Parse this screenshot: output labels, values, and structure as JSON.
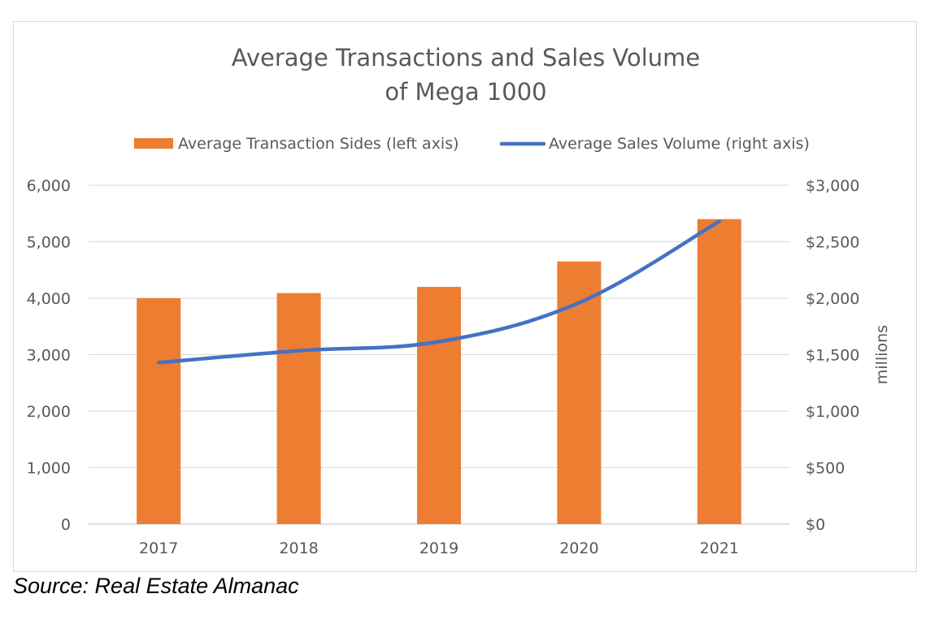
{
  "chart_data": {
    "type": "bar",
    "title": [
      "Average Transactions and Sales Volume",
      "of Mega 1000"
    ],
    "categories": [
      "2017",
      "2018",
      "2019",
      "2020",
      "2021"
    ],
    "series": [
      {
        "name": "Average Transaction Sides (left axis)",
        "type": "bar",
        "axis": "left",
        "color": "#ED7D31",
        "values": [
          4000,
          4090,
          4200,
          4650,
          5400
        ]
      },
      {
        "name": "Average Sales Volume (right axis)",
        "type": "line",
        "axis": "right",
        "color": "#4472C4",
        "values": [
          1430,
          1535,
          1615,
          1960,
          2680
        ]
      }
    ],
    "y_left": {
      "range": [
        0,
        6000
      ],
      "ticks": [
        "0",
        "1,000",
        "2,000",
        "3,000",
        "4,000",
        "5,000",
        "6,000"
      ]
    },
    "y_right": {
      "range": [
        0,
        3000
      ],
      "ticks": [
        "$0",
        "$500",
        "$1,000",
        "$1,500",
        "$2,000",
        "$2,500",
        "$3,000"
      ],
      "label": "millions"
    },
    "grid": true,
    "legend_position": "top"
  },
  "source": "Source: Real Estate Almanac"
}
